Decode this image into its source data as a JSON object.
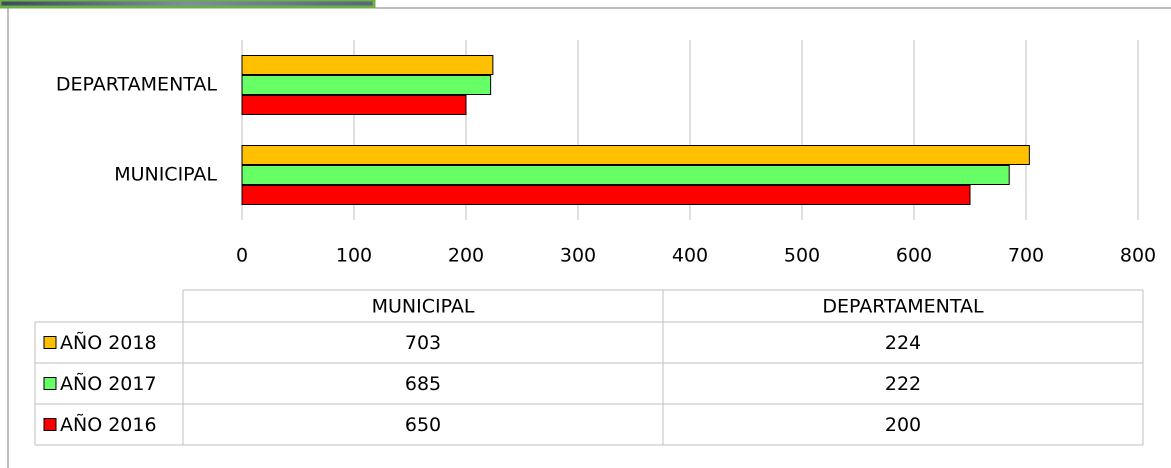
{
  "chart_data": {
    "type": "bar",
    "orientation": "horizontal",
    "categories": [
      "MUNICIPAL",
      "DEPARTAMENTAL"
    ],
    "series": [
      {
        "name": "AÑO 2018",
        "color": "#ffc000",
        "values": [
          703,
          224
        ]
      },
      {
        "name": "AÑO 2017",
        "color": "#66ff66",
        "values": [
          685,
          222
        ]
      },
      {
        "name": "AÑO 2016",
        "color": "#ff0000",
        "values": [
          650,
          200
        ]
      }
    ],
    "xlim": [
      0,
      800
    ],
    "xticks": [
      0,
      100,
      200,
      300,
      400,
      500,
      600,
      700,
      800
    ],
    "grid": true
  }
}
